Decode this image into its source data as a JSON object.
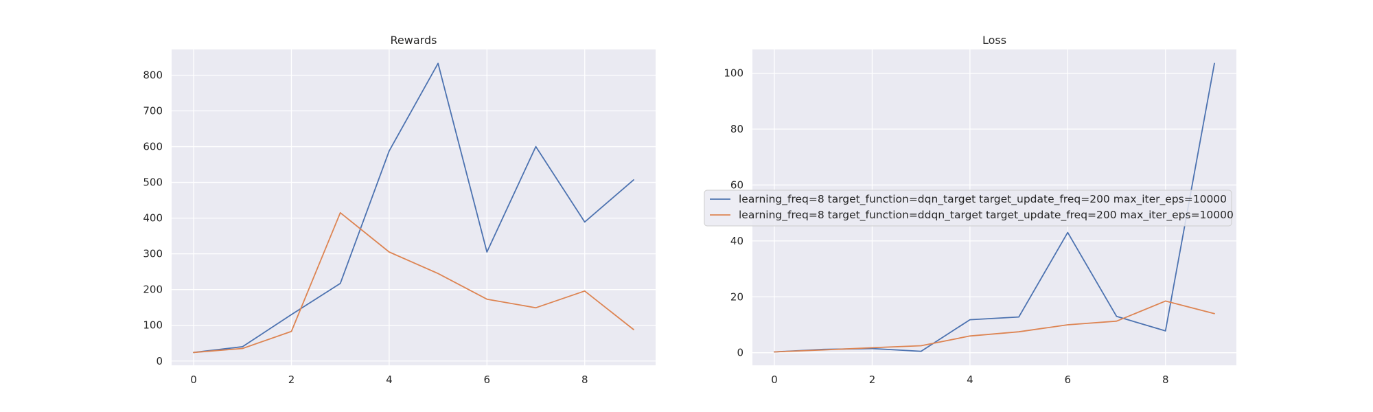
{
  "legend": {
    "entries": [
      {
        "label": "learning_freq=8 target_function=dqn_target target_update_freq=200 max_iter_eps=10000",
        "color": "#4c72b0"
      },
      {
        "label": "learning_freq=8 target_function=ddqn_target target_update_freq=200 max_iter_eps=10000",
        "color": "#dd8452"
      }
    ],
    "placement": "center"
  },
  "chart_data": [
    {
      "type": "line",
      "title": "Rewards",
      "xlabel": "",
      "ylabel": "",
      "grid": true,
      "xlim": [
        -0.45,
        9.45
      ],
      "ylim": [
        -12,
        872
      ],
      "xticks": [
        0,
        2,
        4,
        6,
        8
      ],
      "yticks": [
        0,
        100,
        200,
        300,
        400,
        500,
        600,
        700,
        800
      ],
      "x": [
        0,
        1,
        2,
        3,
        4,
        5,
        6,
        7,
        8,
        9
      ],
      "series": [
        {
          "name": "learning_freq=8 target_function=dqn_target target_update_freq=200 max_iter_eps=10000",
          "color": "#4c72b0",
          "values": [
            24,
            40,
            130,
            217,
            588,
            833,
            305,
            600,
            389,
            507
          ]
        },
        {
          "name": "learning_freq=8 target_function=ddqn_target target_update_freq=200 max_iter_eps=10000",
          "color": "#dd8452",
          "values": [
            24,
            35,
            83,
            415,
            305,
            245,
            173,
            149,
            196,
            88
          ]
        }
      ]
    },
    {
      "type": "line",
      "title": "Loss",
      "xlabel": "",
      "ylabel": "",
      "grid": true,
      "xlim": [
        -0.45,
        9.45
      ],
      "ylim": [
        -4.5,
        108.5
      ],
      "xticks": [
        0,
        2,
        4,
        6,
        8
      ],
      "yticks": [
        0,
        20,
        40,
        60,
        80,
        100
      ],
      "x": [
        0,
        1,
        2,
        3,
        4,
        5,
        6,
        7,
        8,
        9
      ],
      "series": [
        {
          "name": "learning_freq=8 target_function=dqn_target target_update_freq=200 max_iter_eps=10000",
          "color": "#4c72b0",
          "values": [
            0.3,
            1.2,
            1.5,
            0.5,
            11.8,
            12.8,
            43.0,
            13.0,
            7.8,
            103.5
          ]
        },
        {
          "name": "learning_freq=8 target_function=ddqn_target target_update_freq=200 max_iter_eps=10000",
          "color": "#dd8452",
          "values": [
            0.3,
            1.0,
            1.8,
            2.5,
            6.0,
            7.5,
            10.0,
            11.3,
            18.5,
            14.0
          ]
        }
      ]
    }
  ]
}
